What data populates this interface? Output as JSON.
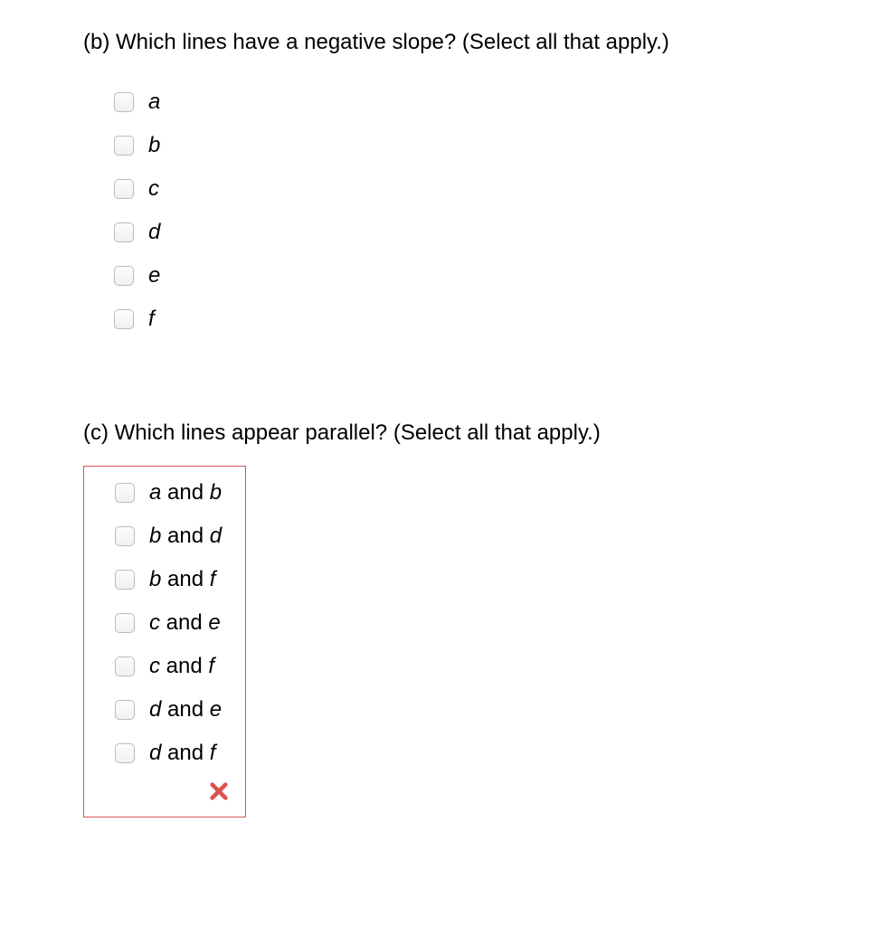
{
  "questions": {
    "b": {
      "label": "(b)",
      "text": "Which lines have a negative slope? (Select all that apply.)",
      "incorrect": false,
      "options": [
        {
          "label_html": "<i>a</i>"
        },
        {
          "label_html": "<i>b</i>"
        },
        {
          "label_html": "<i>c</i>"
        },
        {
          "label_html": "<i>d</i>"
        },
        {
          "label_html": "<i>e</i>"
        },
        {
          "label_html": "<i>f</i>"
        }
      ]
    },
    "c": {
      "label": "(c)",
      "text": "Which lines appear parallel? (Select all that apply.)",
      "incorrect": true,
      "options": [
        {
          "label_html": "<i>a</i><span class=\"roman\"> and </span><i>b</i>"
        },
        {
          "label_html": "<i>b</i><span class=\"roman\"> and </span><i>d</i>"
        },
        {
          "label_html": "<i>b</i><span class=\"roman\"> and </span><i>f</i>"
        },
        {
          "label_html": "<i>c</i><span class=\"roman\"> and </span><i>e</i>"
        },
        {
          "label_html": "<i>c</i><span class=\"roman\"> and </span><i>f</i>"
        },
        {
          "label_html": "<i>d</i><span class=\"roman\"> and </span><i>e</i>"
        },
        {
          "label_html": "<i>d</i><span class=\"roman\"> and </span><i>f</i>"
        }
      ]
    }
  },
  "colors": {
    "incorrect_border": "#d9534f",
    "x_color": "#d9534f",
    "checkbox_border": "#bbb",
    "background": "#ffffff",
    "text": "#000000"
  }
}
